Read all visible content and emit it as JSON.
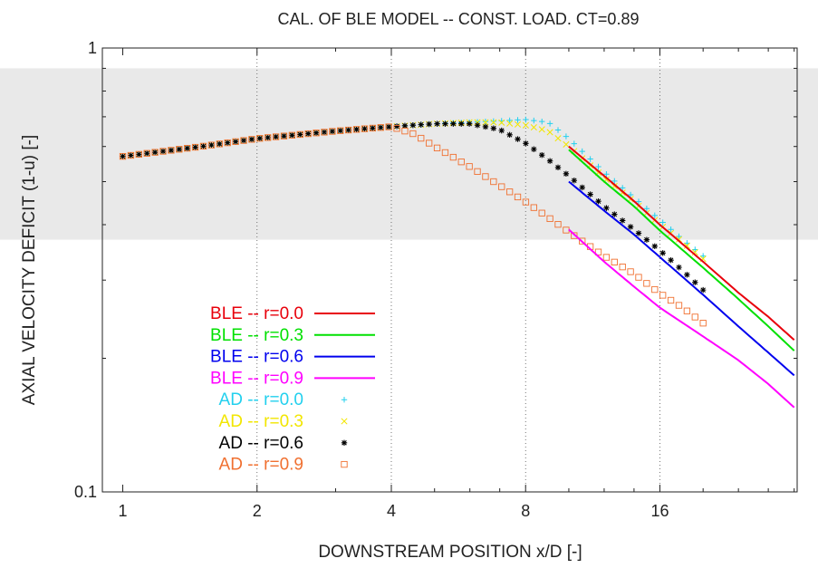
{
  "chart_data": {
    "type": "line",
    "title": "CAL. OF BLE MODEL -- CONST. LOAD. CT=0.89",
    "xlabel": "DOWNSTREAM POSITION x/D [-]",
    "ylabel": "AXIAL VELOCITY DEFICIT (1-u) [-]",
    "x_scale": "log2",
    "y_scale": "log10",
    "xlim": [
      0.9,
      32.5
    ],
    "ylim": [
      0.1,
      1
    ],
    "x_ticks": [
      {
        "value": 1,
        "label": "1"
      },
      {
        "value": 2,
        "label": "2"
      },
      {
        "value": 4,
        "label": "4"
      },
      {
        "value": 8,
        "label": "8"
      },
      {
        "value": 16,
        "label": "16"
      }
    ],
    "y_ticks": [
      {
        "value": 0.1,
        "label": "0.1"
      },
      {
        "value": 1,
        "label": "1"
      }
    ],
    "grid": "dotted vertical lines at x = 2, 4, 8, 16",
    "shaded_band": [
      0.37,
      0.9
    ],
    "legend_position": "lower-left",
    "series": [
      {
        "name": "BLE -- r=0.0",
        "kind": "line",
        "color": "#e8000b",
        "x": [
          10,
          12,
          14,
          16,
          20,
          24,
          28,
          32
        ],
        "y": [
          0.6,
          0.515,
          0.452,
          0.4,
          0.33,
          0.281,
          0.248,
          0.22
        ]
      },
      {
        "name": "BLE -- r=0.3",
        "kind": "line",
        "color": "#00e000",
        "x": [
          10,
          12,
          14,
          16,
          20,
          24,
          28,
          32
        ],
        "y": [
          0.59,
          0.5,
          0.44,
          0.388,
          0.32,
          0.272,
          0.236,
          0.208
        ]
      },
      {
        "name": "BLE -- r=0.6",
        "kind": "line",
        "color": "#0000ee",
        "x": [
          10,
          12,
          14,
          16,
          20,
          24,
          28,
          32
        ],
        "y": [
          0.5,
          0.43,
          0.38,
          0.338,
          0.278,
          0.236,
          0.206,
          0.183
        ]
      },
      {
        "name": "BLE -- r=0.9",
        "kind": "line",
        "color": "#ff00ff",
        "x": [
          10,
          12,
          14,
          16,
          20,
          24,
          28,
          32
        ],
        "y": [
          0.39,
          0.33,
          0.29,
          0.26,
          0.224,
          0.198,
          0.175,
          0.155
        ]
      },
      {
        "name": "AD -- r=0.0",
        "kind": "points",
        "marker": "plus",
        "color": "#22d0ee",
        "x": [
          1,
          1.5,
          2,
          3,
          4,
          5,
          6,
          7,
          8,
          9,
          10,
          12,
          14,
          16,
          18,
          20
        ],
        "y": [
          0.57,
          0.6,
          0.625,
          0.65,
          0.665,
          0.675,
          0.68,
          0.685,
          0.69,
          0.68,
          0.625,
          0.525,
          0.46,
          0.41,
          0.37,
          0.34
        ]
      },
      {
        "name": "AD -- r=0.3",
        "kind": "points",
        "marker": "cross",
        "color": "#f2e600",
        "x": [
          1,
          1.5,
          2,
          3,
          4,
          5,
          6,
          7,
          8,
          9,
          10,
          12,
          14,
          16,
          18,
          20
        ],
        "y": [
          0.57,
          0.6,
          0.625,
          0.65,
          0.665,
          0.675,
          0.68,
          0.68,
          0.67,
          0.65,
          0.6,
          0.51,
          0.45,
          0.4,
          0.365,
          0.335
        ]
      },
      {
        "name": "AD -- r=0.6",
        "kind": "points",
        "marker": "star",
        "color": "#000000",
        "x": [
          1,
          1.5,
          2,
          3,
          4,
          5,
          6,
          7,
          8,
          9,
          10,
          12,
          14,
          16,
          18,
          20
        ],
        "y": [
          0.57,
          0.6,
          0.625,
          0.65,
          0.665,
          0.675,
          0.675,
          0.655,
          0.61,
          0.56,
          0.515,
          0.44,
          0.39,
          0.35,
          0.315,
          0.285
        ]
      },
      {
        "name": "AD -- r=0.9",
        "kind": "points",
        "marker": "square",
        "color": "#f07030",
        "x": [
          1,
          1.5,
          2,
          3,
          4,
          4.5,
          5,
          6,
          7,
          8,
          9,
          10,
          12,
          14,
          16,
          18,
          20
        ],
        "y": [
          0.57,
          0.6,
          0.625,
          0.65,
          0.665,
          0.64,
          0.6,
          0.54,
          0.49,
          0.45,
          0.415,
          0.385,
          0.34,
          0.31,
          0.28,
          0.26,
          0.24
        ]
      }
    ]
  }
}
